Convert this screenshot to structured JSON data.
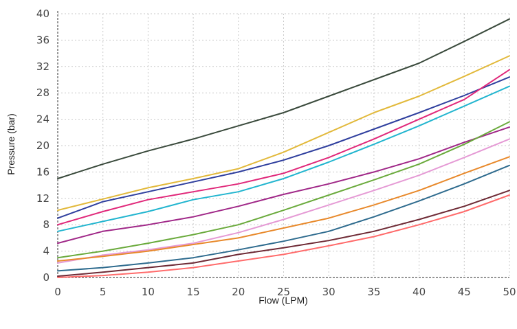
{
  "chart_data": {
    "type": "line",
    "xlabel": "Flow (LPM)",
    "ylabel": "Pressure (bar)",
    "xlim": [
      0,
      50
    ],
    "ylim": [
      0,
      40
    ],
    "xticks": [
      "0",
      "5",
      "10",
      "15",
      "20",
      "25",
      "30",
      "35",
      "40",
      "45",
      "50"
    ],
    "yticks": [
      "0",
      "4",
      "8",
      "12",
      "16",
      "20",
      "24",
      "28",
      "32",
      "36",
      "40"
    ],
    "grid": "dotted",
    "x": [
      0,
      5,
      10,
      15,
      20,
      25,
      30,
      35,
      40,
      45,
      50
    ],
    "series": [
      {
        "color": "#3a4a3c",
        "values": [
          15.0,
          17.2,
          19.2,
          21.0,
          23.0,
          25.0,
          27.5,
          30.0,
          32.5,
          35.8,
          39.2
        ]
      },
      {
        "color": "#e2b93b",
        "values": [
          10.2,
          11.9,
          13.6,
          15.0,
          16.5,
          19.0,
          22.0,
          25.0,
          27.5,
          30.5,
          33.6
        ]
      },
      {
        "color": "#2f3f9e",
        "values": [
          9.0,
          11.5,
          13.0,
          14.5,
          16.0,
          17.8,
          20.0,
          22.5,
          25.0,
          27.6,
          30.4
        ]
      },
      {
        "color": "#e0287a",
        "values": [
          8.0,
          10.0,
          11.8,
          13.0,
          14.2,
          15.8,
          18.2,
          21.0,
          24.0,
          27.0,
          31.5
        ]
      },
      {
        "color": "#22b5cf",
        "values": [
          7.0,
          8.5,
          10.0,
          11.8,
          13.0,
          15.0,
          17.5,
          20.2,
          23.0,
          26.0,
          29.0
        ]
      },
      {
        "color": "#a02888",
        "values": [
          5.2,
          7.0,
          8.0,
          9.2,
          10.8,
          12.6,
          14.2,
          16.0,
          18.0,
          20.5,
          22.8
        ]
      },
      {
        "color": "#6aaa3c",
        "values": [
          3.0,
          4.0,
          5.2,
          6.5,
          8.0,
          10.2,
          12.5,
          14.8,
          17.2,
          20.2,
          23.6
        ]
      },
      {
        "color": "#e59ad5",
        "values": [
          2.2,
          3.4,
          4.2,
          5.2,
          6.8,
          8.8,
          11.0,
          13.2,
          15.5,
          18.2,
          21.0
        ]
      },
      {
        "color": "#e8892b",
        "values": [
          2.5,
          3.2,
          4.0,
          5.0,
          6.0,
          7.5,
          9.0,
          11.0,
          13.2,
          15.8,
          18.3
        ]
      },
      {
        "color": "#2e6b8e",
        "values": [
          1.0,
          1.5,
          2.2,
          3.0,
          4.2,
          5.5,
          7.0,
          9.2,
          11.6,
          14.2,
          17.0
        ]
      },
      {
        "color": "#6e2a35",
        "values": [
          0.2,
          0.8,
          1.5,
          2.2,
          3.5,
          4.5,
          5.6,
          7.0,
          8.8,
          10.8,
          13.2
        ]
      },
      {
        "color": "#ff6b6b",
        "values": [
          0.0,
          0.3,
          0.8,
          1.5,
          2.5,
          3.5,
          4.8,
          6.2,
          8.0,
          10.0,
          12.5
        ]
      }
    ]
  }
}
